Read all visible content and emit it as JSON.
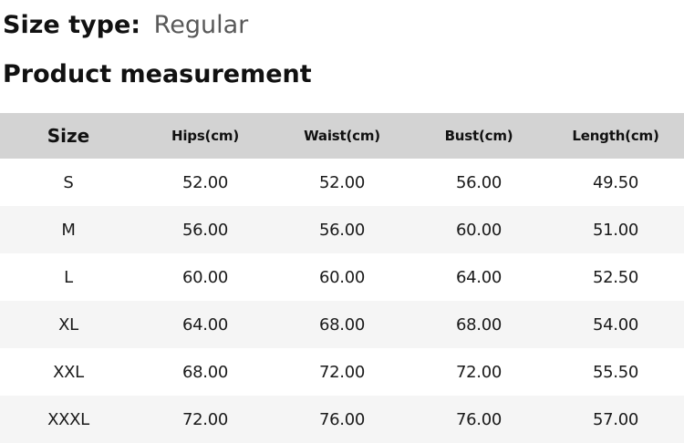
{
  "header": {
    "size_type_label": "Size type:",
    "size_type_value": "Regular",
    "section_title": "Product measurement"
  },
  "table": {
    "columns": [
      "Size",
      "Hips(cm)",
      "Waist(cm)",
      "Bust(cm)",
      "Length(cm)"
    ],
    "rows": [
      [
        "S",
        "52.00",
        "52.00",
        "56.00",
        "49.50"
      ],
      [
        "M",
        "56.00",
        "56.00",
        "60.00",
        "51.00"
      ],
      [
        "L",
        "60.00",
        "60.00",
        "64.00",
        "52.50"
      ],
      [
        "XL",
        "64.00",
        "68.00",
        "68.00",
        "54.00"
      ],
      [
        "XXL",
        "68.00",
        "72.00",
        "72.00",
        "55.50"
      ],
      [
        "XXXL",
        "72.00",
        "76.00",
        "76.00",
        "57.00"
      ]
    ]
  },
  "colors": {
    "header_row_bg": "#d3d3d3",
    "alt_row_bg": "#f5f5f5",
    "muted_text": "#595959",
    "text": "#111111"
  }
}
